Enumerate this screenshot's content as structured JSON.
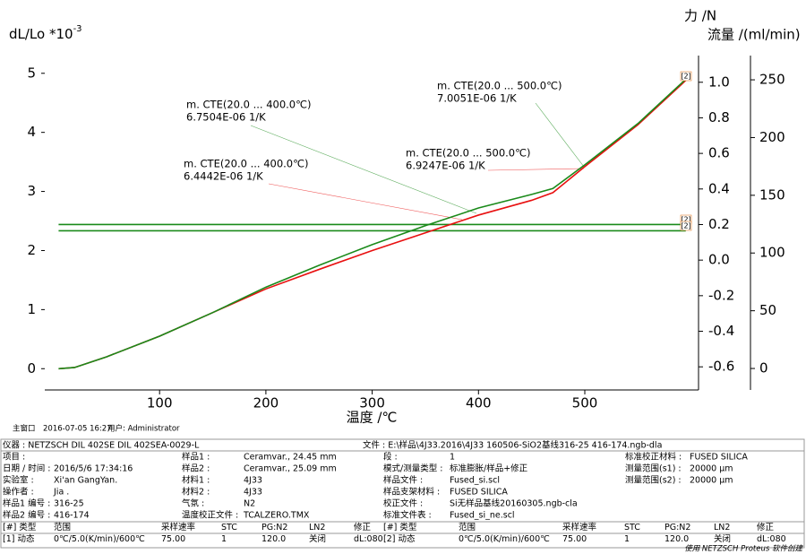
{
  "chart_data": {
    "type": "line",
    "y_label": {
      "text": "dL/Lo *10",
      "superscript": "-3"
    },
    "y2_label": "力 /N",
    "y3_label": "流量 /(ml/min)",
    "x_label": "温度 /℃",
    "xlim": [
      -8,
      607
    ],
    "xticks": [
      100,
      200,
      300,
      400,
      500
    ],
    "ylim": [
      -0.36,
      5.3
    ],
    "yticks": [
      0,
      1,
      2,
      3,
      4,
      5
    ],
    "y2lim": [
      -0.73,
      1.15
    ],
    "y2ticks": [
      -0.6,
      -0.4,
      -0.2,
      {
        "value": 0,
        "label": "0.0"
      },
      0.2,
      0.4,
      0.6,
      0.8,
      {
        "value": 1,
        "label": "1.0"
      }
    ],
    "y3lim": [
      -18.6,
      271
    ],
    "y3ticks": [
      0,
      50,
      100,
      150,
      200,
      250
    ],
    "series": [
      {
        "color": "#1a8a1a",
        "axis": "y2",
        "x": [
          5,
          595
        ],
        "values": [
          0.2,
          0.2
        ]
      },
      {
        "color": "#1a8a1a",
        "axis": "y2",
        "x": [
          5,
          595
        ],
        "values": [
          0.165,
          0.165
        ]
      },
      {
        "color": "#e81010",
        "x": [
          5,
          20,
          50,
          100,
          150,
          200,
          250,
          300,
          350,
          400,
          450,
          470,
          500,
          550,
          595
        ],
        "values": [
          0,
          0.02,
          0.2,
          0.55,
          0.95,
          1.35,
          1.68,
          2.0,
          2.3,
          2.6,
          2.85,
          2.98,
          3.42,
          4.13,
          4.88
        ]
      },
      {
        "color": "#1a8a1a",
        "x": [
          5,
          20,
          50,
          100,
          150,
          200,
          250,
          300,
          350,
          400,
          450,
          470,
          500,
          550,
          595
        ],
        "values": [
          0,
          0.02,
          0.2,
          0.55,
          0.95,
          1.38,
          1.75,
          2.1,
          2.42,
          2.72,
          2.95,
          3.05,
          3.45,
          4.15,
          4.9
        ]
      }
    ],
    "annotations": [
      {
        "color": "#1a8a1a",
        "lines": [
          "m. CTE(20.0 ... 400.0℃)",
          "6.7504E-06 1/K"
        ]
      },
      {
        "color": "#1a8a1a",
        "lines": [
          "m. CTE(20.0 ... 500.0℃)",
          "7.0051E-06 1/K"
        ]
      },
      {
        "color": "#e81010",
        "lines": [
          "m. CTE(20.0 ... 400.0℃)",
          "6.4442E-06 1/K"
        ]
      },
      {
        "color": "#e81010",
        "lines": [
          "m. CTE(20.0 ... 500.0℃)",
          "6.9247E-06 1/K"
        ]
      }
    ],
    "curve_markers": [
      "[2]",
      "[2]",
      "[2]"
    ]
  },
  "status": [
    "主窗口",
    "2016-07-05 16:27",
    "用户: Administrator"
  ],
  "info": {
    "header": [
      "仪器 : NETZSCH DIL 402SE DIL 402SEA-0029-L",
      "文件 : E:\\样品\\4J33.2016\\4J33 160506-SiO2基线316-25 416-174.ngb-dla"
    ],
    "rows": [
      [
        "项目 :",
        "",
        "样品1 :",
        "Ceramvar., 24.45 mm",
        "段 :",
        "1",
        "标准校正材料 :",
        "FUSED SILICA"
      ],
      [
        "日期 / 时间 :",
        "2016/5/6 17:34:16",
        "样品2 :",
        "Ceramvar., 25.09 mm",
        "模式/测量类型 :",
        "标准膨胀/样品+修正",
        "测量范围(s1) :",
        "20000 µm"
      ],
      [
        "实验室 :",
        "Xi'an GangYan.",
        "材料1 :",
        "4J33",
        "样品文件 :",
        "Fused_si.scl",
        "测量范围(s2) :",
        "20000 µm"
      ],
      [
        "操作者 :",
        "Jia .",
        "材料2 :",
        "4J33",
        "样品支架材料 :",
        "FUSED SILICA"
      ],
      [
        "样品1 编号 :",
        "316-25",
        "气氛 :",
        "N2",
        "校正文件 :",
        "Si无样品基线20160305.ngb-cla"
      ],
      [
        "样品2 编号 :",
        "416-174",
        "温度校正文件 :",
        "TCALZERO.TMX",
        "标准文件表 :",
        "Fused_si_ne.scl"
      ]
    ],
    "segments": {
      "columns": [
        "[#] 类型",
        "范围",
        "采样速率",
        "STC",
        "PG:N2",
        "LN2",
        "修正",
        "[#] 类型",
        "范围",
        "采样速率",
        "STC",
        "PG:N2",
        "LN2",
        "修正"
      ],
      "runs": [
        {
          "color": "#1a8a1a",
          "cells": [
            "[1] 动态",
            "0℃/5.0(K/min)/600℃",
            "75.00",
            "1",
            "120.0",
            "关闭",
            "dL:080"
          ]
        },
        {
          "color": "#e81010",
          "cells": [
            "[2] 动态",
            "0℃/5.0(K/min)/600℃",
            "75.00",
            "1",
            "120.0",
            "关闭",
            "dL:080"
          ]
        }
      ]
    },
    "credit": "使用 NETZSCH Proteus 软件创建"
  }
}
